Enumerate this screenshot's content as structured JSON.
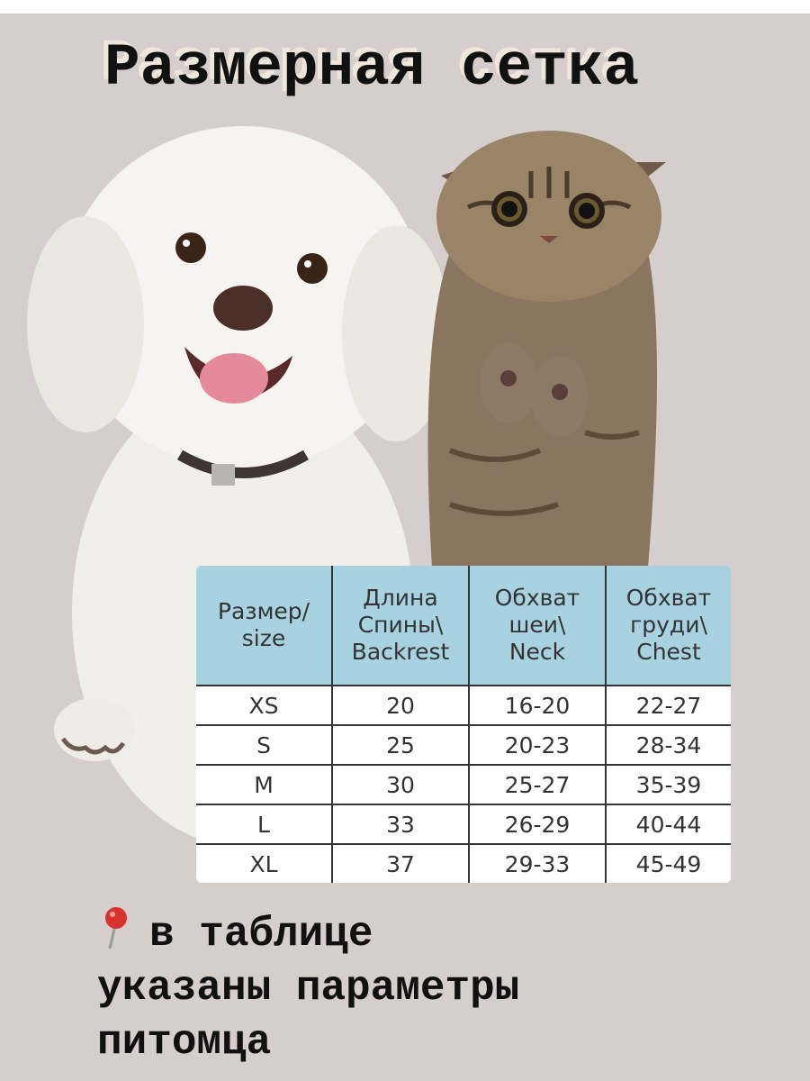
{
  "title": "Размерная сетка",
  "colors": {
    "background": "#d6cdcd",
    "table_header": "#a8d2df"
  },
  "images": [
    "white-poodle-dog",
    "tabby-kitten"
  ],
  "table": {
    "headers": [
      [
        "Размер/",
        "size"
      ],
      [
        "Длина",
        "Спины\\",
        "Backrest"
      ],
      [
        "Обхват",
        "шеи\\",
        "Neck"
      ],
      [
        "Обхват",
        "груди\\",
        "Chest"
      ]
    ],
    "rows": [
      [
        "XS",
        "20",
        "16-20",
        "22-27"
      ],
      [
        "S",
        "25",
        "20-23",
        "28-34"
      ],
      [
        "M",
        "30",
        "25-27",
        "35-39"
      ],
      [
        "L",
        "33",
        "26-29",
        "40-44"
      ],
      [
        "XL",
        "37",
        "29-33",
        "45-49"
      ]
    ]
  },
  "note": {
    "icon": "pushpin-icon",
    "lines": [
      "в таблице",
      "указаны параметры",
      "питомца"
    ]
  }
}
